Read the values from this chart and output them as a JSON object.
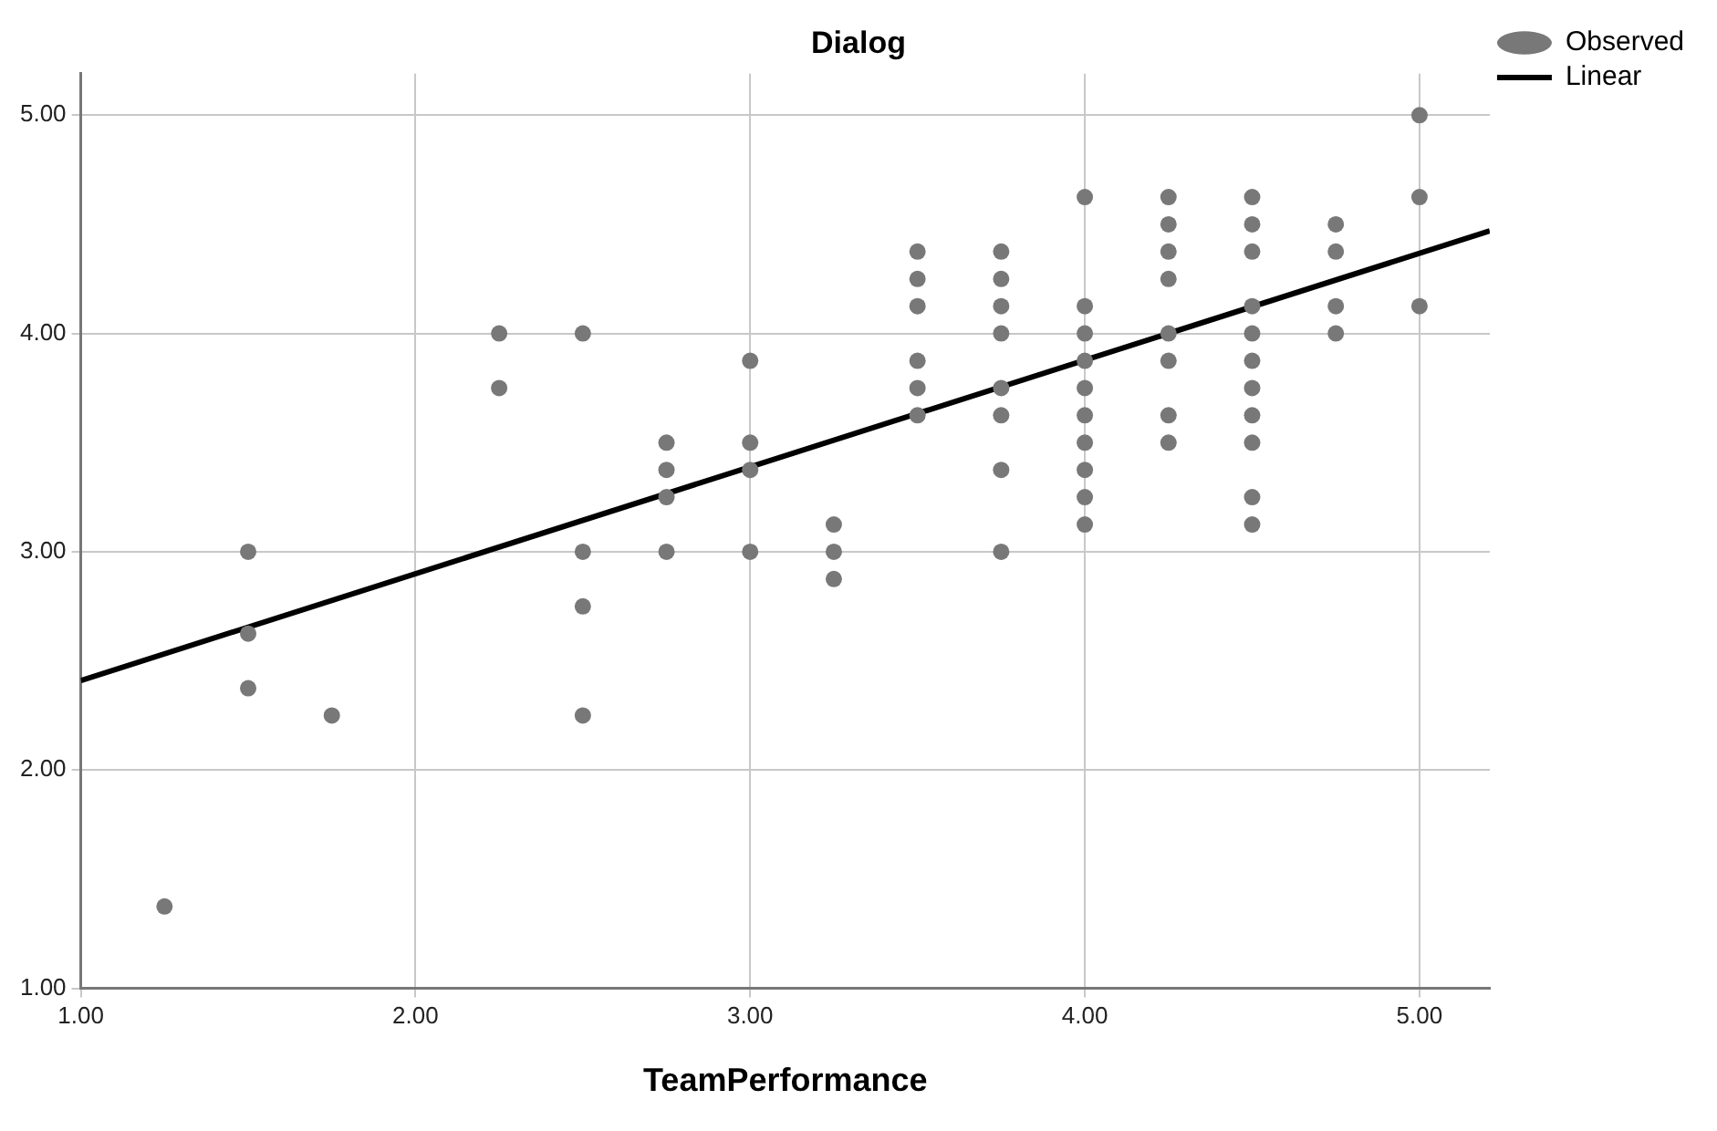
{
  "chart_data": {
    "type": "scatter",
    "title": "Dialog",
    "xlabel": "TeamPerformance",
    "xlim": [
      1,
      5.21
    ],
    "ylim": [
      1,
      5.19
    ],
    "xticks": [
      {
        "value": 1,
        "label": "1.00"
      },
      {
        "value": 2,
        "label": "2.00"
      },
      {
        "value": 3,
        "label": "3.00"
      },
      {
        "value": 4,
        "label": "4.00"
      },
      {
        "value": 5,
        "label": "5.00"
      }
    ],
    "yticks": [
      {
        "value": 1,
        "label": "1.00"
      },
      {
        "value": 2,
        "label": "2.00"
      },
      {
        "value": 3,
        "label": "3.00"
      },
      {
        "value": 4,
        "label": "4.00"
      },
      {
        "value": 5,
        "label": "5.00"
      }
    ],
    "grid": true,
    "legend": "top right",
    "series": [
      {
        "name": "Observed",
        "type": "scatter",
        "marker": "circle",
        "color": "#787878",
        "x": [
          1.25,
          1.5,
          1.5,
          1.5,
          1.75,
          2.25,
          2.25,
          2.5,
          2.5,
          2.5,
          2.5,
          2.75,
          2.75,
          2.75,
          2.75,
          3,
          3,
          3,
          3,
          3.25,
          3.25,
          3.25,
          3.5,
          3.5,
          3.5,
          3.5,
          3.5,
          3.5,
          3.75,
          3.75,
          3.75,
          3.75,
          3.75,
          3.75,
          3.75,
          3.75,
          4,
          4,
          4,
          4,
          4,
          4,
          4,
          4,
          4,
          4,
          4.25,
          4.25,
          4.25,
          4.25,
          4.25,
          4.25,
          4.25,
          4.25,
          4.5,
          4.5,
          4.5,
          4.5,
          4.5,
          4.5,
          4.5,
          4.5,
          4.5,
          4.5,
          4.5,
          4.75,
          4.75,
          4.75,
          4.75,
          5,
          5,
          5
        ],
        "values": [
          1.375,
          3,
          2.625,
          2.375,
          2.25,
          4,
          3.75,
          4,
          3,
          2.75,
          2.25,
          3.5,
          3.375,
          3.25,
          3,
          3.875,
          3.5,
          3.375,
          3,
          3.125,
          3,
          2.875,
          4.375,
          4.25,
          4.125,
          3.875,
          3.75,
          3.625,
          4.375,
          4.25,
          4.125,
          4,
          3.75,
          3.625,
          3.375,
          3,
          4.625,
          4.125,
          4,
          3.875,
          3.75,
          3.625,
          3.5,
          3.375,
          3.25,
          3.125,
          4.625,
          4.5,
          4.375,
          4.25,
          4,
          3.875,
          3.625,
          3.5,
          4.625,
          4.5,
          4.375,
          4.125,
          4,
          3.875,
          3.75,
          3.625,
          3.5,
          3.25,
          3.125,
          4.5,
          4.375,
          4.125,
          4,
          5,
          4.625,
          4.125
        ]
      },
      {
        "name": "Linear",
        "type": "line",
        "marker": "none",
        "line_style": "solid",
        "color": "#000000",
        "x": [
          1,
          5.21
        ],
        "values": [
          2.41,
          4.47
        ]
      }
    ]
  }
}
